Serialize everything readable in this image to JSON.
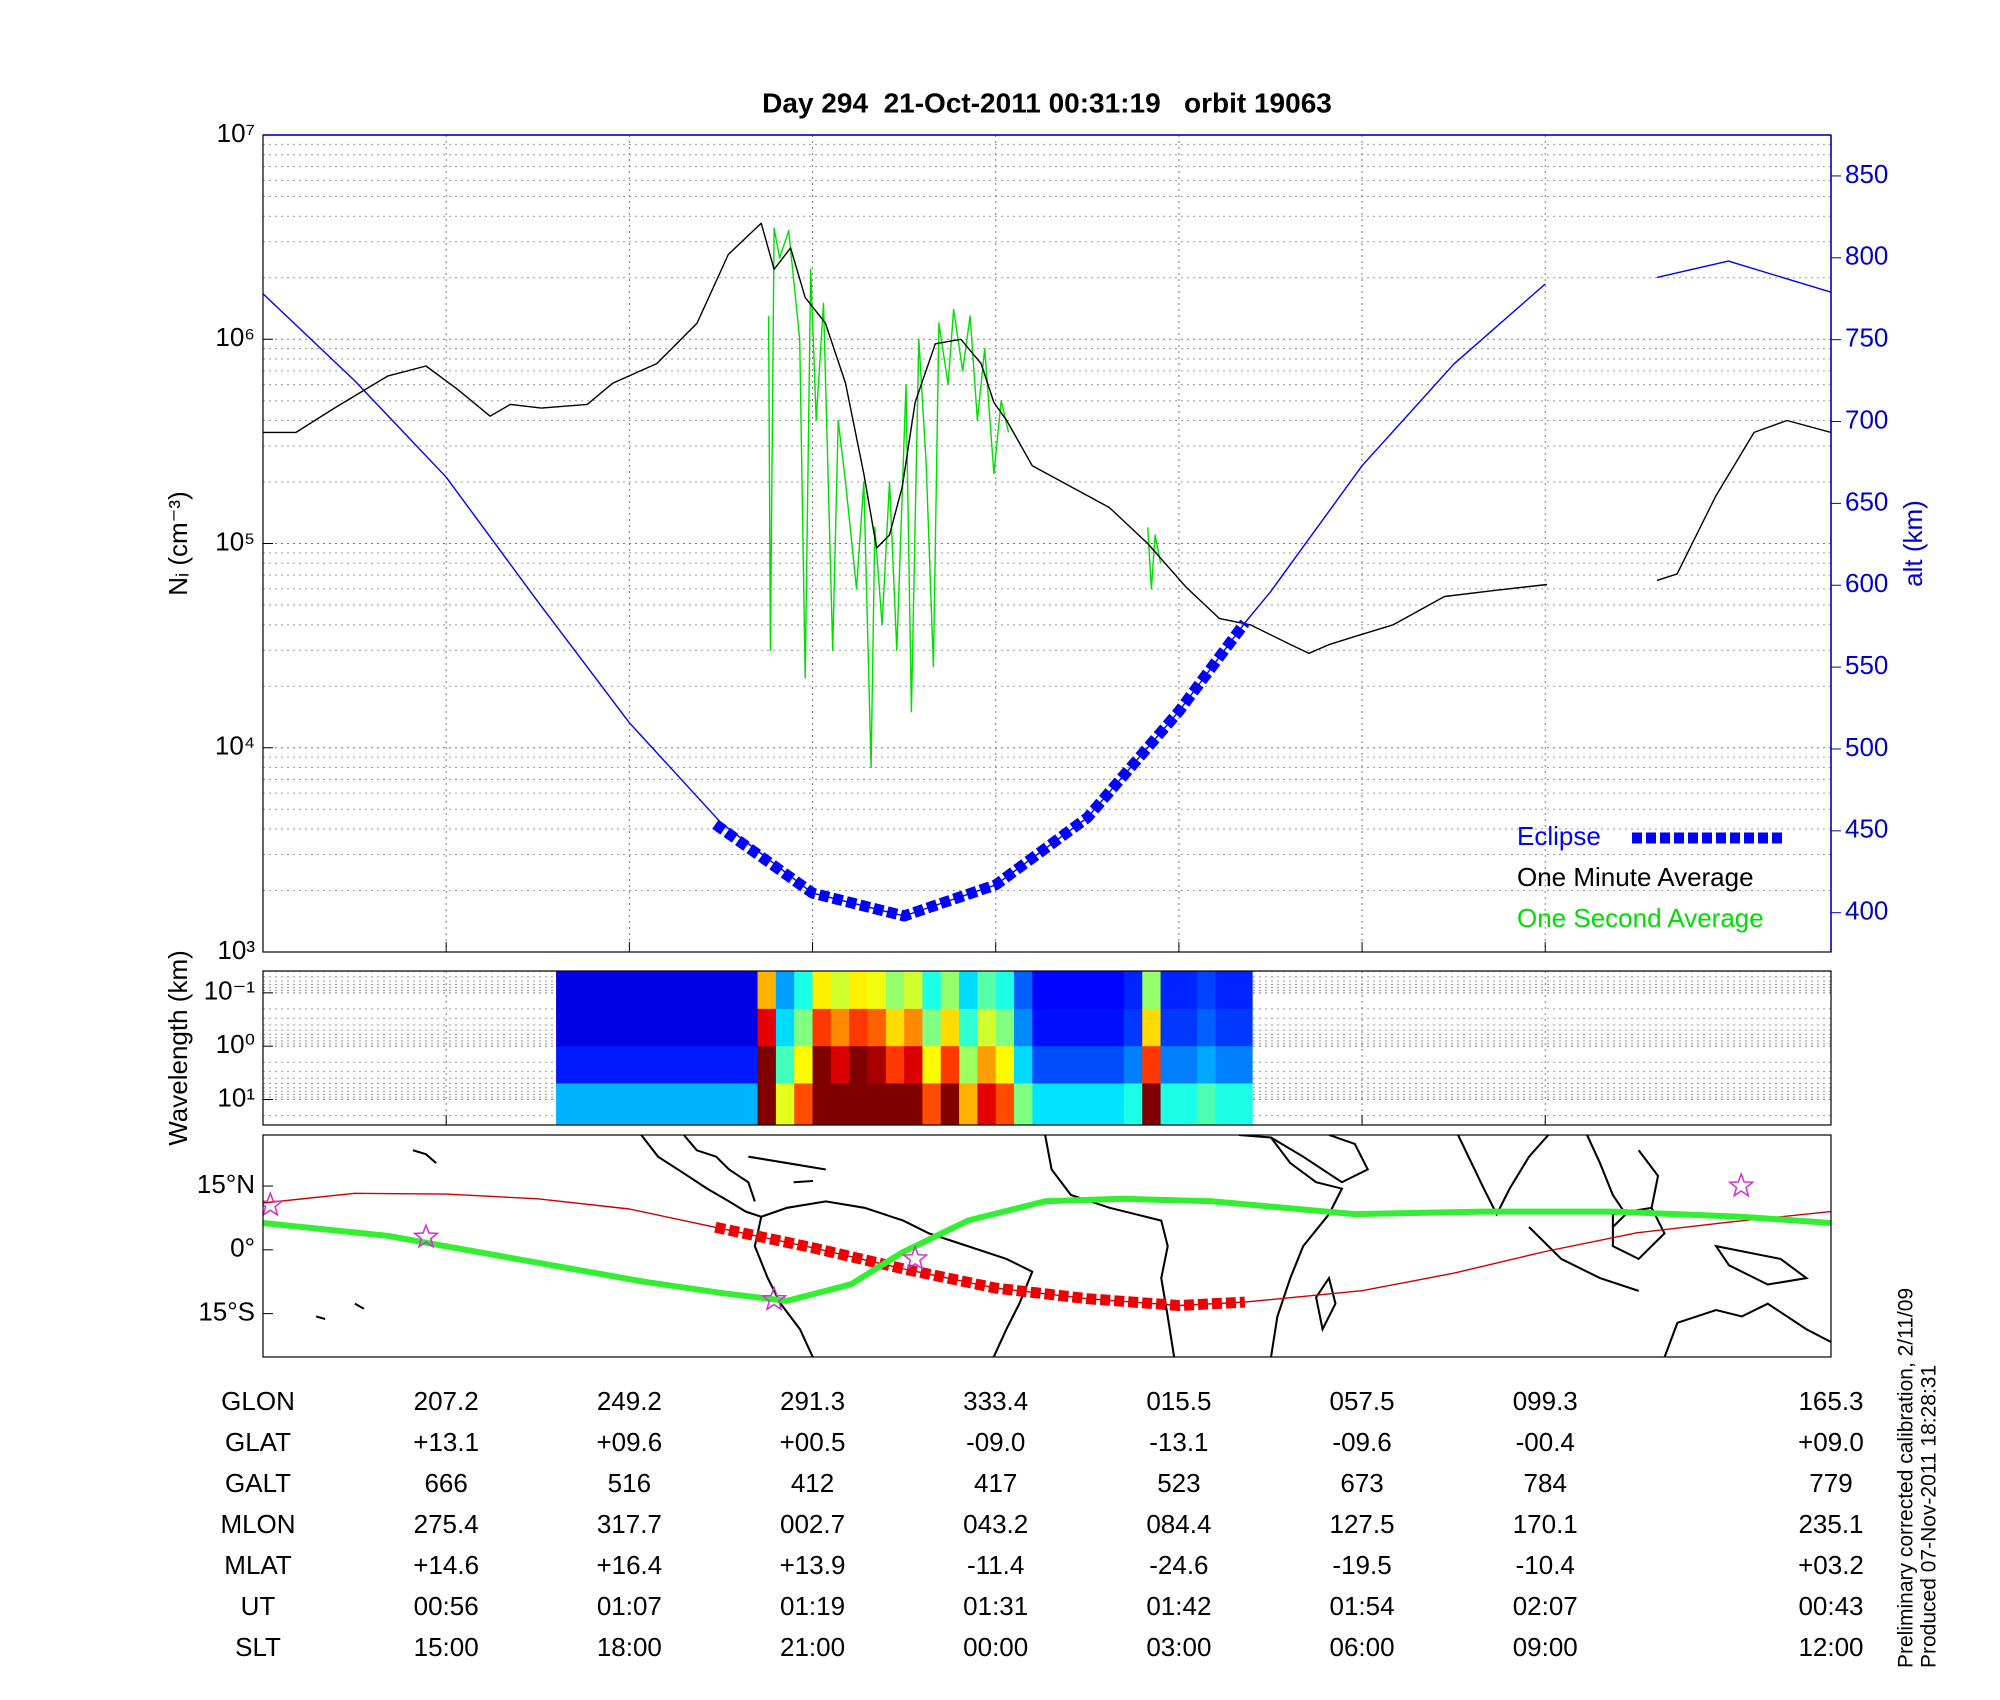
{
  "chart_data": [
    {
      "type": "line",
      "title": "Day 294  21-Oct-2011 00:31:19   orbit 19063",
      "ylabel": "Nᵢ (cm⁻³)",
      "y2label": "alt (km)",
      "y2color": "#0000cc",
      "log_y": true,
      "grid": true,
      "minor_grid": true,
      "legend": "lower right",
      "xlim": [
        0,
        8.56
      ],
      "xticks": [
        1,
        2,
        3,
        4,
        5,
        6,
        7,
        8.56
      ],
      "ylim": [
        1000,
        10000000
      ],
      "yticks": [
        {
          "value": 1000,
          "label": "10³"
        },
        {
          "value": 10000,
          "label": "10⁴"
        },
        {
          "value": 100000,
          "label": "10⁵"
        },
        {
          "value": 1000000,
          "label": "10⁶"
        },
        {
          "value": 10000000,
          "label": "10⁷"
        }
      ],
      "y2lim": [
        376,
        875
      ],
      "y2ticks": [
        400,
        450,
        500,
        550,
        600,
        650,
        700,
        750,
        800,
        850
      ],
      "series": [
        {
          "color": "#0000ff",
          "axis": "y2",
          "x": [
            0,
            0.5,
            1,
            1.5,
            2,
            2.5,
            3,
            3.5,
            4,
            4.5,
            5,
            5.36,
            5.5,
            6,
            6.5,
            7,
            7.3,
            7.61,
            8,
            8.56
          ],
          "values": [
            778,
            725,
            666,
            590,
            516,
            455,
            412,
            398,
            417,
            458,
            523,
            577,
            596,
            673,
            735,
            784,
            null,
            788,
            798,
            779
          ]
        },
        {
          "name": "One Second Average",
          "color": "#00dd00",
          "x": [
            2.76,
            2.77,
            2.79,
            2.82,
            2.87,
            2.93,
            2.96,
            2.99,
            3.02,
            3.06,
            3.11,
            3.14,
            3.18,
            3.24,
            3.28,
            3.32,
            3.34,
            3.38,
            3.42,
            3.46,
            3.51,
            3.54,
            3.58,
            3.62,
            3.66,
            3.69,
            3.74,
            3.77,
            3.82,
            3.86,
            3.9,
            3.94,
            3.99,
            4.03,
            4.07,
            4.5,
            4.83,
            4.85,
            4.87,
            4.9
          ],
          "values": [
            1300000,
            30000,
            3500000,
            2500000,
            3400000,
            1000000,
            22000,
            2200000,
            400000,
            1500000,
            30000,
            400000,
            200000,
            60000,
            200000,
            8000,
            120000,
            40000,
            200000,
            30000,
            600000,
            15000,
            1000000,
            250000,
            25000,
            1200000,
            600000,
            1400000,
            700000,
            1300000,
            400000,
            900000,
            220000,
            500000,
            350000,
            null,
            120000,
            60000,
            110000,
            80000
          ]
        },
        {
          "name": "One Minute Average",
          "color": "#000000",
          "x": [
            0,
            0.18,
            0.39,
            0.68,
            0.89,
            1.06,
            1.24,
            1.35,
            1.52,
            1.77,
            1.91,
            2.15,
            2.37,
            2.54,
            2.72,
            2.79,
            2.88,
            2.96,
            3.07,
            3.18,
            3.28,
            3.35,
            3.42,
            3.49,
            3.56,
            3.67,
            3.81,
            3.92,
            3.99,
            4.06,
            4.2,
            4.41,
            4.62,
            4.83,
            5.04,
            5.22,
            5.39,
            5.61,
            5.71,
            5.82,
            5.96,
            6.17,
            6.45,
            6.73,
            7.01,
            7.3,
            7.61,
            7.72,
            7.93,
            8.14,
            8.32,
            8.56
          ],
          "values": [
            350000,
            350000,
            460000,
            660000,
            740000,
            570000,
            420000,
            480000,
            460000,
            480000,
            610000,
            760000,
            1200000,
            2600000,
            3700000,
            2200000,
            2800000,
            1600000,
            1200000,
            610000,
            220000,
            95000,
            110000,
            190000,
            490000,
            950000,
            1000000,
            760000,
            490000,
            400000,
            240000,
            190000,
            150000,
            100000,
            61000,
            43000,
            40000,
            32000,
            29000,
            32000,
            35000,
            40000,
            55000,
            59000,
            63000,
            null,
            66000,
            71000,
            170000,
            350000,
            400000,
            350000
          ]
        },
        {
          "name": "Eclipse",
          "color": "#0000ff",
          "axis": "y2",
          "style": "dashed-thick",
          "x": [
            2.47,
            3,
            3.5,
            4,
            4.5,
            5,
            5.36
          ],
          "values": [
            454,
            412,
            398,
            417,
            458,
            523,
            577
          ]
        }
      ]
    },
    {
      "type": "heatmap",
      "ylabel": "Wavelength (km)",
      "log_y": true,
      "invert_y": true,
      "grid": true,
      "minor_grid": true,
      "xlim": [
        0,
        8.56
      ],
      "xticks": [
        1,
        2,
        3,
        4,
        5,
        6,
        7,
        8.56
      ],
      "ylim": [
        0.039,
        30
      ],
      "yticks": [
        {
          "value": 0.1,
          "label": "10⁻¹"
        },
        {
          "value": 1,
          "label": "10⁰"
        },
        {
          "value": 10,
          "label": "10¹"
        }
      ],
      "x_edges": [
        1.6,
        1.7,
        1.8,
        1.9,
        2.0,
        2.1,
        2.2,
        2.3,
        2.4,
        2.5,
        2.6,
        2.7,
        2.8,
        2.9,
        3.0,
        3.1,
        3.2,
        3.3,
        3.4,
        3.5,
        3.6,
        3.7,
        3.8,
        3.9,
        4.0,
        4.1,
        4.2,
        4.3,
        4.4,
        4.5,
        4.6,
        4.7,
        4.8,
        4.9,
        5.0,
        5.1,
        5.2,
        5.3,
        5.4
      ],
      "y_edges": [
        0.039,
        0.2,
        1,
        5,
        30
      ],
      "values": [
        [
          0.1,
          0.1,
          0.1,
          0.1,
          0.1,
          0.1,
          0.1,
          0.1,
          0.1,
          0.1,
          0.1,
          0.7,
          0.28,
          0.4,
          0.64,
          0.58,
          0.64,
          0.61,
          0.52,
          0.58,
          0.4,
          0.52,
          0.34,
          0.46,
          0.4,
          0.22,
          0.13,
          0.13,
          0.13,
          0.13,
          0.13,
          0.16,
          0.52,
          0.16,
          0.16,
          0.19,
          0.16,
          0.16
        ],
        [
          0.1,
          0.1,
          0.1,
          0.1,
          0.1,
          0.1,
          0.1,
          0.1,
          0.1,
          0.1,
          0.1,
          0.9,
          0.34,
          0.5,
          0.82,
          0.74,
          0.82,
          0.78,
          0.66,
          0.74,
          0.5,
          0.66,
          0.42,
          0.58,
          0.5,
          0.26,
          0.14,
          0.14,
          0.14,
          0.14,
          0.14,
          0.18,
          0.66,
          0.18,
          0.18,
          0.22,
          0.18,
          0.18
        ],
        [
          0.15,
          0.15,
          0.15,
          0.15,
          0.15,
          0.15,
          0.15,
          0.15,
          0.15,
          0.15,
          0.15,
          1,
          0.44,
          0.63,
          1,
          0.91,
          1,
          0.96,
          0.82,
          0.91,
          0.63,
          0.82,
          0.53,
          0.72,
          0.63,
          0.34,
          0.2,
          0.2,
          0.2,
          0.2,
          0.2,
          0.25,
          0.82,
          0.25,
          0.25,
          0.29,
          0.25,
          0.25
        ],
        [
          0.3,
          0.3,
          0.3,
          0.3,
          0.3,
          0.3,
          0.3,
          0.3,
          0.3,
          0.3,
          0.3,
          1,
          0.6,
          0.8,
          1,
          1,
          1,
          1,
          1,
          1,
          0.8,
          1,
          0.7,
          0.9,
          0.8,
          0.5,
          0.35,
          0.35,
          0.35,
          0.35,
          0.35,
          0.4,
          1,
          0.4,
          0.4,
          0.45,
          0.4,
          0.4
        ]
      ]
    },
    {
      "type": "map",
      "xlim": [
        0,
        8.56
      ],
      "ylim": [
        -25.2,
        27
      ],
      "yticks": [
        {
          "value": 15,
          "label": "15°N"
        },
        {
          "value": 0,
          "label": "0°"
        },
        {
          "value": -15,
          "label": "15°S"
        }
      ],
      "series": [
        {
          "color": "#cc0000",
          "x": [
            0,
            0.5,
            1,
            1.5,
            2,
            2.47,
            3,
            3.5,
            4,
            4.5,
            5,
            5.36,
            6,
            6.5,
            7,
            7.5,
            8,
            8.56
          ],
          "values": [
            11,
            13.3,
            13.1,
            12,
            9.6,
            5.3,
            0.5,
            -4.5,
            -9,
            -11.5,
            -13.1,
            -12.3,
            -9.6,
            -5.5,
            -0.4,
            4,
            6.5,
            9
          ]
        },
        {
          "color": "#ee0000",
          "style": "dashed-thick",
          "x": [
            2.47,
            3,
            3.5,
            4,
            4.5,
            5,
            5.36
          ],
          "values": [
            5.3,
            0.5,
            -4.5,
            -9,
            -11.5,
            -13.1,
            -12.3
          ]
        },
        {
          "color": "#33ee33",
          "style": "thick",
          "x": [
            0,
            0.68,
            1.38,
            2.08,
            2.51,
            2.86,
            3.21,
            3.49,
            3.85,
            4.27,
            4.69,
            5.18,
            5.96,
            6.66,
            7.37,
            8.07,
            8.56
          ],
          "values": [
            6.3,
            3.3,
            -2.1,
            -7.5,
            -10.2,
            -12,
            -8.1,
            -0.6,
            6.9,
            11.4,
            12,
            11.4,
            8.4,
            9,
            9,
            7.8,
            6.3
          ]
        },
        {
          "color": "#cc33cc",
          "marker": "star",
          "x": [
            0.04,
            0.89,
            2.79,
            3.56,
            8.07
          ],
          "values": [
            10.5,
            3,
            -11.7,
            -2.1,
            15
          ]
        }
      ]
    }
  ],
  "table": {
    "rows": [
      {
        "label": "GLON",
        "values": [
          "207.2",
          "249.2",
          "291.3",
          "333.4",
          "015.5",
          "057.5",
          "099.3",
          "165.3"
        ]
      },
      {
        "label": "GLAT",
        "values": [
          "+13.1",
          "+09.6",
          "+00.5",
          "-09.0",
          "-13.1",
          "-09.6",
          "-00.4",
          "+09.0"
        ]
      },
      {
        "label": "GALT",
        "values": [
          "666",
          "516",
          "412",
          "417",
          "523",
          "673",
          "784",
          "779"
        ]
      },
      {
        "label": "MLON",
        "values": [
          "275.4",
          "317.7",
          "002.7",
          "043.2",
          "084.4",
          "127.5",
          "170.1",
          "235.1"
        ]
      },
      {
        "label": "MLAT",
        "values": [
          "+14.6",
          "+16.4",
          "+13.9",
          "-11.4",
          "-24.6",
          "-19.5",
          "-10.4",
          "+03.2"
        ]
      },
      {
        "label": "UT",
        "values": [
          "00:56",
          "01:07",
          "01:19",
          "01:31",
          "01:42",
          "01:54",
          "02:07",
          "00:43"
        ]
      },
      {
        "label": "SLT",
        "values": [
          "15:00",
          "18:00",
          "21:00",
          "00:00",
          "03:00",
          "06:00",
          "09:00",
          "12:00"
        ]
      }
    ]
  },
  "notes": [
    "Preliminary corrected calibration, 2/11/09",
    "Produced 07-Nov-2011 18:28:31"
  ]
}
